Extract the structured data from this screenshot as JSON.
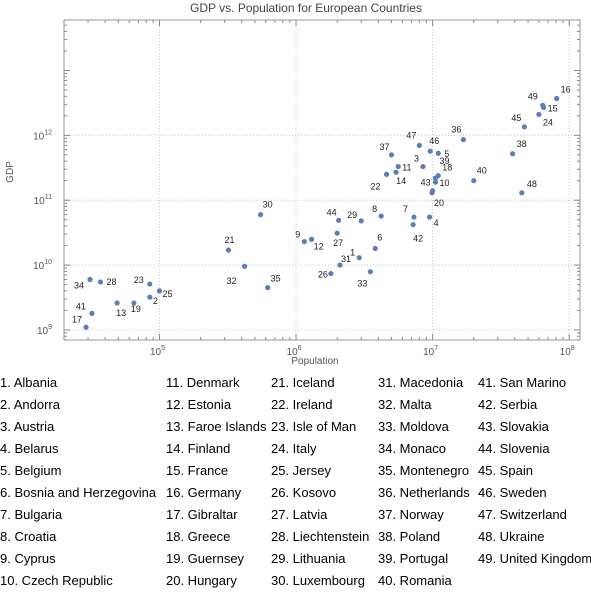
{
  "chart_data": {
    "type": "scatter",
    "title": "GDP vs. Population for European Countries",
    "xlabel": "Population",
    "ylabel": "GDP",
    "xscale": "log",
    "yscale": "log",
    "xlim": [
      20000,
      120000000
    ],
    "ylim": [
      700000000,
      60000000000000
    ],
    "grid": true,
    "point_color": "#5b7db9",
    "x_ticks": [
      {
        "value": 100000,
        "base": "10",
        "exp": "5"
      },
      {
        "value": 1000000,
        "base": "10",
        "exp": "6"
      },
      {
        "value": 10000000,
        "base": "10",
        "exp": "7"
      },
      {
        "value": 100000000,
        "base": "10",
        "exp": "8"
      }
    ],
    "y_ticks": [
      {
        "value": 1000000000,
        "base": "10",
        "exp": "9"
      },
      {
        "value": 10000000000,
        "base": "10",
        "exp": "10"
      },
      {
        "value": 100000000000,
        "base": "10",
        "exp": "11"
      },
      {
        "value": 1000000000000,
        "base": "10",
        "exp": "12"
      }
    ],
    "points": [
      {
        "label": "1",
        "x": 2900000,
        "y": 13000000000
      },
      {
        "label": "2",
        "x": 85000,
        "y": 3200000000
      },
      {
        "label": "3",
        "x": 8500000,
        "y": 330000000000
      },
      {
        "label": "4",
        "x": 9500000,
        "y": 55000000000
      },
      {
        "label": "5",
        "x": 11000000,
        "y": 530000000000
      },
      {
        "label": "6",
        "x": 3800000,
        "y": 18000000000
      },
      {
        "label": "7",
        "x": 7300000,
        "y": 55000000000
      },
      {
        "label": "8",
        "x": 4200000,
        "y": 57000000000
      },
      {
        "label": "9",
        "x": 1150000,
        "y": 23000000000
      },
      {
        "label": "10",
        "x": 10500000,
        "y": 190000000000
      },
      {
        "label": "11",
        "x": 5600000,
        "y": 330000000000
      },
      {
        "label": "12",
        "x": 1300000,
        "y": 25000000000
      },
      {
        "label": "13",
        "x": 49000,
        "y": 2600000000
      },
      {
        "label": "14",
        "x": 5400000,
        "y": 270000000000
      },
      {
        "label": "15",
        "x": 65000000,
        "y": 2700000000000
      },
      {
        "label": "16",
        "x": 81000000,
        "y": 3700000000000
      },
      {
        "label": "17",
        "x": 29000,
        "y": 1100000000
      },
      {
        "label": "18",
        "x": 11000000,
        "y": 240000000000
      },
      {
        "label": "19",
        "x": 65000,
        "y": 2600000000
      },
      {
        "label": "20",
        "x": 9900000,
        "y": 130000000000
      },
      {
        "label": "21",
        "x": 320000,
        "y": 17000000000
      },
      {
        "label": "22",
        "x": 4600000,
        "y": 250000000000
      },
      {
        "label": "23",
        "x": 85000,
        "y": 5100000000
      },
      {
        "label": "24",
        "x": 60000000,
        "y": 2100000000000
      },
      {
        "label": "25",
        "x": 100000,
        "y": 4000000000
      },
      {
        "label": "26",
        "x": 1800000,
        "y": 7400000000
      },
      {
        "label": "27",
        "x": 2000000,
        "y": 31000000000
      },
      {
        "label": "28",
        "x": 37000,
        "y": 5500000000
      },
      {
        "label": "29",
        "x": 3000000,
        "y": 48000000000
      },
      {
        "label": "30",
        "x": 550000,
        "y": 60000000000
      },
      {
        "label": "31",
        "x": 2100000,
        "y": 10000000000
      },
      {
        "label": "32",
        "x": 420000,
        "y": 9600000000
      },
      {
        "label": "33",
        "x": 3500000,
        "y": 7900000000
      },
      {
        "label": "34",
        "x": 31000,
        "y": 6000000000
      },
      {
        "label": "35",
        "x": 620000,
        "y": 4500000000
      },
      {
        "label": "36",
        "x": 16800000,
        "y": 860000000000
      },
      {
        "label": "37",
        "x": 5000000,
        "y": 500000000000
      },
      {
        "label": "38",
        "x": 38500000,
        "y": 520000000000
      },
      {
        "label": "39",
        "x": 10500000,
        "y": 220000000000
      },
      {
        "label": "40",
        "x": 20000000,
        "y": 200000000000
      },
      {
        "label": "41",
        "x": 32000,
        "y": 1800000000
      },
      {
        "label": "42",
        "x": 7200000,
        "y": 42000000000
      },
      {
        "label": "43",
        "x": 10000000,
        "y": 140000000000
      },
      {
        "label": "44",
        "x": 2050000,
        "y": 49000000000
      },
      {
        "label": "45",
        "x": 47000000,
        "y": 1350000000000
      },
      {
        "label": "46",
        "x": 9600000,
        "y": 570000000000
      },
      {
        "label": "47",
        "x": 8000000,
        "y": 700000000000
      },
      {
        "label": "48",
        "x": 45000000,
        "y": 130000000000
      },
      {
        "label": "49",
        "x": 64000000,
        "y": 2900000000000
      }
    ]
  },
  "legend": [
    [
      "1. Albania",
      "2. Andorra",
      "3. Austria",
      "4. Belarus",
      "5. Belgium",
      "6. Bosnia and Herzegovina",
      "7. Bulgaria",
      "8. Croatia",
      "9. Cyprus",
      "10. Czech Republic"
    ],
    [
      "11. Denmark",
      "12. Estonia",
      "13. Faroe Islands",
      "14. Finland",
      "15. France",
      "16. Germany",
      "17. Gibraltar",
      "18. Greece",
      "19. Guernsey",
      "20. Hungary"
    ],
    [
      "21. Iceland",
      "22. Ireland",
      "23. Isle of Man",
      "24. Italy",
      "25. Jersey",
      "26. Kosovo",
      "27. Latvia",
      "28. Liechtenstein",
      "29. Lithuania",
      "30. Luxembourg"
    ],
    [
      "31. Macedonia",
      "32. Malta",
      "33. Moldova",
      "34. Monaco",
      "35. Montenegro",
      "36. Netherlands",
      "37. Norway",
      "38. Poland",
      "39. Portugal",
      "40. Romania"
    ],
    [
      "41. San Marino",
      "42. Serbia",
      "43. Slovakia",
      "44. Slovenia",
      "45. Spain",
      "46. Sweden",
      "47. Switzerland",
      "48. Ukraine",
      "49. United Kingdom"
    ]
  ]
}
